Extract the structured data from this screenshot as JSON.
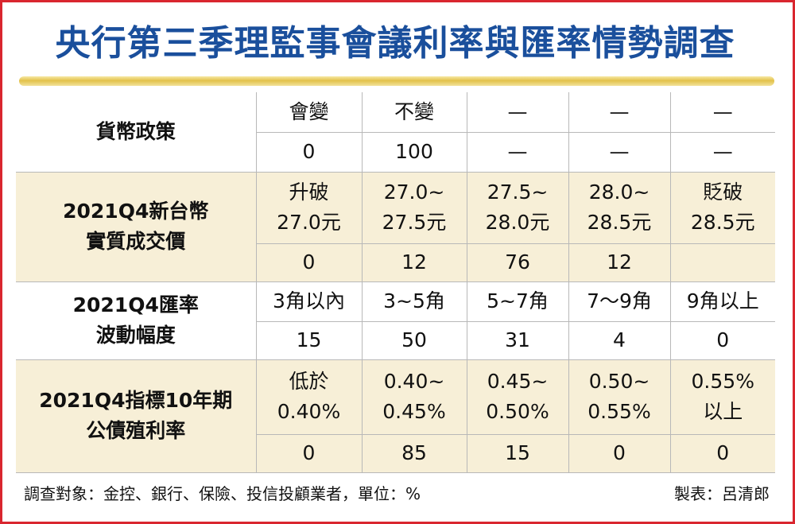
{
  "title": "央行第三季理監事會議利率與匯率情勢調查",
  "sections": [
    {
      "label_lines": [
        "貨幣政策"
      ],
      "options": [
        [
          "會變"
        ],
        [
          "不變"
        ],
        [
          "—"
        ],
        [
          "—"
        ],
        [
          "—"
        ]
      ],
      "values": [
        "0",
        "100",
        "—",
        "—",
        "—"
      ]
    },
    {
      "label_lines": [
        "2021Q4新台幣",
        "實質成交價"
      ],
      "options": [
        [
          "升破",
          "27.0元"
        ],
        [
          "27.0~",
          "27.5元"
        ],
        [
          "27.5~",
          "28.0元"
        ],
        [
          "28.0~",
          "28.5元"
        ],
        [
          "貶破",
          "28.5元"
        ]
      ],
      "values": [
        "0",
        "12",
        "76",
        "12",
        ""
      ]
    },
    {
      "label_lines": [
        "2021Q4匯率",
        "波動幅度"
      ],
      "options": [
        [
          "3角以內"
        ],
        [
          "3~5角"
        ],
        [
          "5~7角"
        ],
        [
          "7～9角"
        ],
        [
          "9角以上"
        ]
      ],
      "values": [
        "15",
        "50",
        "31",
        "4",
        "0"
      ]
    },
    {
      "label_lines": [
        "2021Q4指標10年期",
        "公債殖利率"
      ],
      "options": [
        [
          "低於",
          "0.40%"
        ],
        [
          "0.40~",
          "0.45%"
        ],
        [
          "0.45~",
          "0.50%"
        ],
        [
          "0.50~",
          "0.55%"
        ],
        [
          "0.55%",
          "以上"
        ]
      ],
      "values": [
        "0",
        "85",
        "15",
        "0",
        "0"
      ]
    }
  ],
  "footer": {
    "note": "調查對象：金控、銀行、保險、投信投顧業者，單位：%",
    "credit": "製表：呂清郎"
  },
  "colors": {
    "border": "#d9262f",
    "title": "#1a4f9c",
    "tint": "#f7efd7",
    "rule": "#e2c14a"
  }
}
